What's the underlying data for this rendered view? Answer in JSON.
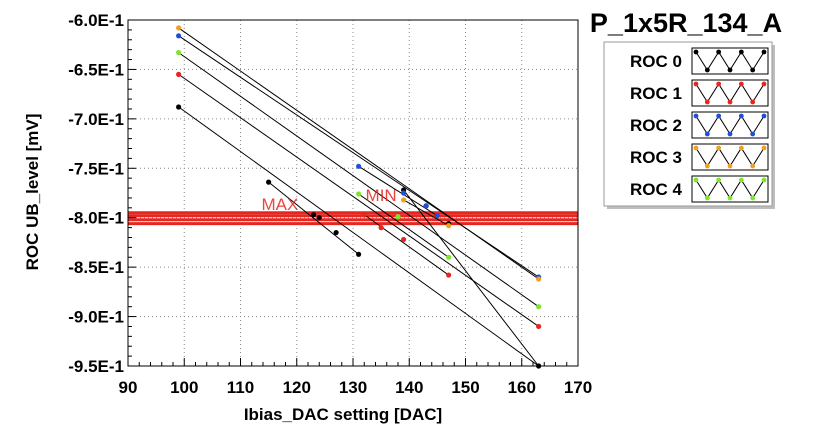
{
  "chart_data": {
    "type": "scatter",
    "title": "P_1x5R_134_A",
    "xlabel": "Ibias_DAC setting [DAC]",
    "ylabel": "ROC UB_level [mV]",
    "xlim": [
      90,
      170
    ],
    "ylim": [
      -0.95,
      -0.6
    ],
    "x_ticks": [
      90,
      100,
      110,
      120,
      130,
      140,
      150,
      160,
      170
    ],
    "x_tick_labels": [
      "90",
      "100",
      "110",
      "120",
      "130",
      "140",
      "150",
      "160",
      "170"
    ],
    "y_ticks": [
      -0.6,
      -0.65,
      -0.7,
      -0.75,
      -0.8,
      -0.85,
      -0.9,
      -0.95
    ],
    "y_tick_labels": [
      "-6.0E-1",
      "-6.5E-1",
      "-7.0E-1",
      "-7.5E-1",
      "-8.0E-1",
      "-8.5E-1",
      "-9.0E-1",
      "-9.5E-1"
    ],
    "grid": true,
    "legend_position": "top-right",
    "series": [
      {
        "name": "ROC 0",
        "color": "#000000",
        "points": [
          [
            99,
            -0.688
          ],
          [
            115,
            -0.764
          ],
          [
            123,
            -0.797
          ],
          [
            124,
            -0.8
          ],
          [
            127,
            -0.815
          ],
          [
            131,
            -0.837
          ],
          [
            139,
            -0.772
          ],
          [
            143,
            -0.788
          ],
          [
            147,
            -0.806
          ],
          [
            163,
            -0.95
          ]
        ],
        "segments": [
          [
            0,
            9
          ],
          [
            1,
            5
          ],
          [
            6,
            9
          ]
        ]
      },
      {
        "name": "ROC 1",
        "color": "#e8251f",
        "points": [
          [
            99,
            -0.655
          ],
          [
            132,
            -0.797
          ],
          [
            135,
            -0.81
          ],
          [
            139,
            -0.822
          ],
          [
            147,
            -0.858
          ],
          [
            163,
            -0.91
          ]
        ],
        "segments": [
          [
            0,
            5
          ],
          [
            1,
            4
          ]
        ]
      },
      {
        "name": "ROC 2",
        "color": "#1f4fd8",
        "points": [
          [
            99,
            -0.616
          ],
          [
            131,
            -0.748
          ],
          [
            139,
            -0.775
          ],
          [
            143,
            -0.788
          ],
          [
            145,
            -0.798
          ],
          [
            163,
            -0.86
          ]
        ],
        "segments": [
          [
            0,
            5
          ],
          [
            1,
            4
          ]
        ]
      },
      {
        "name": "ROC 3",
        "color": "#f0a020",
        "points": [
          [
            99,
            -0.608
          ],
          [
            139,
            -0.782
          ],
          [
            147,
            -0.808
          ],
          [
            163,
            -0.862
          ]
        ],
        "segments": [
          [
            0,
            3
          ],
          [
            1,
            2
          ]
        ]
      },
      {
        "name": "ROC 4",
        "color": "#7ee62a",
        "points": [
          [
            99,
            -0.633
          ],
          [
            131,
            -0.776
          ],
          [
            138,
            -0.799
          ],
          [
            147,
            -0.84
          ],
          [
            163,
            -0.89
          ]
        ],
        "segments": [
          [
            0,
            4
          ],
          [
            1,
            3
          ]
        ]
      }
    ],
    "reference_lines": [
      {
        "label": "MIN",
        "values": [
          -0.795,
          -0.798
        ],
        "color": "#e8251f"
      },
      {
        "label": "MAX",
        "values": [
          -0.802,
          -0.806
        ],
        "color": "#e8251f"
      }
    ],
    "annotations": [
      {
        "text": "MAX",
        "x": 117,
        "y": -0.792
      },
      {
        "text": "MIN",
        "x": 135,
        "y": -0.783
      }
    ]
  }
}
